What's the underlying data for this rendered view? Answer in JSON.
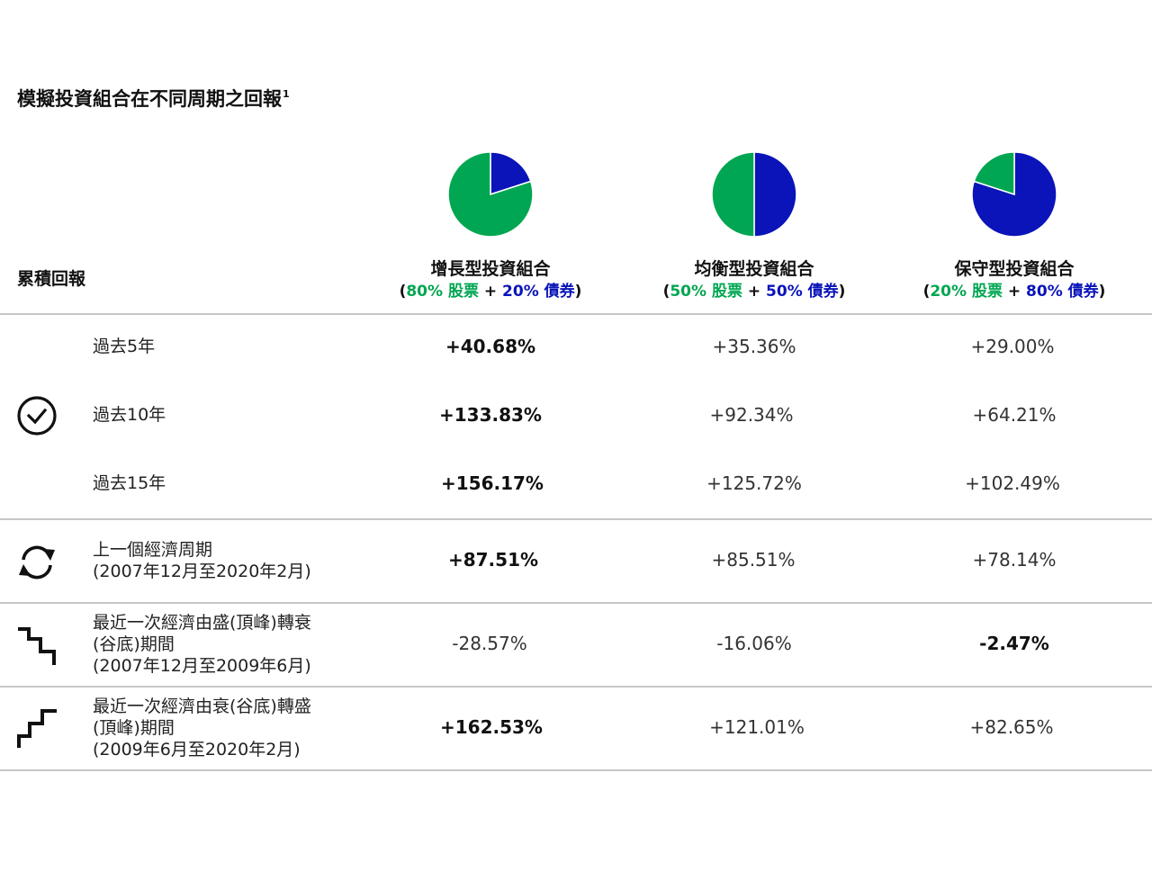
{
  "title": "模擬投資組合在不同周期之回報",
  "title_footnote": "1",
  "section_label": "累積回報",
  "colors": {
    "equity": "#00a651",
    "bond": "#0a14b9"
  },
  "chart_data": {
    "type": "table",
    "columns": [
      {
        "name": "增長型投資組合",
        "mix": {
          "open": "(",
          "equity": "80% 股票",
          "plus": "+",
          "bond": "20% 債券",
          "close": ")"
        },
        "allocation": {
          "equity": 80,
          "bond": 20
        }
      },
      {
        "name": "均衡型投資組合",
        "mix": {
          "open": "(",
          "equity": "50% 股票",
          "plus": "+",
          "bond": "50% 債券",
          "close": ")"
        },
        "allocation": {
          "equity": 50,
          "bond": 50
        }
      },
      {
        "name": "保守型投資組合",
        "mix": {
          "open": "(",
          "equity": "20% 股票",
          "plus": "+",
          "bond": "80% 債券",
          "close": ")"
        },
        "allocation": {
          "equity": 20,
          "bond": 80
        }
      }
    ],
    "rows": [
      {
        "label": [
          "過去5年"
        ],
        "icon": "",
        "values": [
          "+40.68%",
          "+35.36%",
          "+29.00%"
        ],
        "bold": 0
      },
      {
        "label": [
          "過去10年"
        ],
        "icon": "clock-icon",
        "values": [
          "+133.83%",
          "+92.34%",
          "+64.21%"
        ],
        "bold": 0
      },
      {
        "label": [
          "過去15年"
        ],
        "icon": "",
        "values": [
          "+156.17%",
          "+125.72%",
          "+102.49%"
        ],
        "bold": 0
      },
      {
        "label": [
          "上一個經濟周期",
          "(2007年12月至2020年2月)"
        ],
        "icon": "cycle-icon",
        "values": [
          "+87.51%",
          "+85.51%",
          "+78.14%"
        ],
        "bold": 0
      },
      {
        "label": [
          "最近一次經濟由盛(頂峰)轉衰",
          "(谷底)期間",
          "(2007年12月至2009年6月)"
        ],
        "icon": "stairs-down-icon",
        "values": [
          "-28.57%",
          "-16.06%",
          "-2.47%"
        ],
        "bold": 2
      },
      {
        "label": [
          "最近一次經濟由衰(谷底)轉盛",
          "(頂峰)期間",
          "(2009年6月至2020年2月)"
        ],
        "icon": "stairs-up-icon",
        "values": [
          "+162.53%",
          "+121.01%",
          "+82.65%"
        ],
        "bold": 0
      }
    ]
  }
}
